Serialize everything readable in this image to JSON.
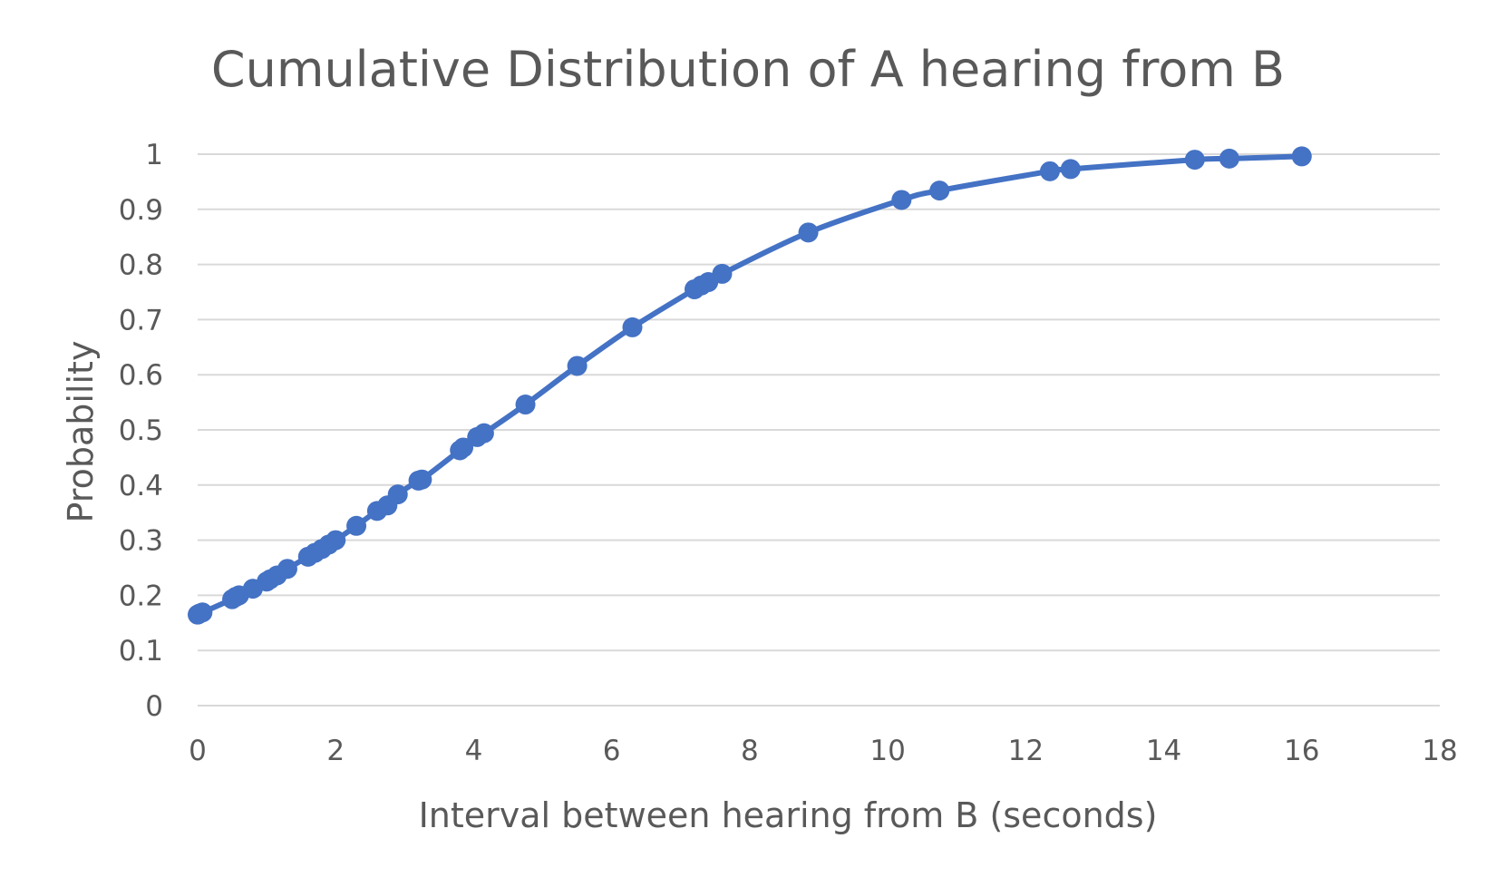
{
  "chart_data": {
    "type": "scatter",
    "title": "Cumulative Distribution of A hearing from B",
    "xlabel": "Interval between hearing from B (seconds)",
    "ylabel": "Probability",
    "xlim": [
      0,
      18
    ],
    "ylim": [
      0,
      1
    ],
    "x_ticks": [
      0,
      2,
      4,
      6,
      8,
      10,
      12,
      14,
      16,
      18
    ],
    "y_ticks": [
      0,
      0.1,
      0.2,
      0.3,
      0.4,
      0.5,
      0.6,
      0.7,
      0.8,
      0.9,
      1
    ],
    "grid": true,
    "legend": false,
    "line_style": "smooth line with markers",
    "color": "#4472c4",
    "series": [
      {
        "x": [
          0.0,
          0.03,
          0.07,
          0.5,
          0.55,
          0.6,
          0.8,
          1.0,
          1.05,
          1.15,
          1.3,
          1.6,
          1.7,
          1.8,
          1.9,
          2.0,
          2.3,
          2.6,
          2.75,
          2.9,
          3.2,
          3.25,
          3.8,
          3.85,
          4.05,
          4.15,
          4.75,
          5.5,
          6.3,
          7.2,
          7.3,
          7.4,
          7.6,
          8.85,
          10.2,
          10.75,
          12.35,
          12.65,
          14.45,
          14.95,
          16.0
        ],
        "y": [
          0.165,
          0.167,
          0.169,
          0.193,
          0.197,
          0.2,
          0.212,
          0.225,
          0.229,
          0.236,
          0.248,
          0.27,
          0.277,
          0.284,
          0.292,
          0.3,
          0.326,
          0.353,
          0.363,
          0.383,
          0.408,
          0.41,
          0.463,
          0.468,
          0.487,
          0.494,
          0.546,
          0.616,
          0.686,
          0.755,
          0.762,
          0.768,
          0.783,
          0.858,
          0.917,
          0.934,
          0.969,
          0.973,
          0.99,
          0.992,
          0.996
        ]
      }
    ]
  }
}
